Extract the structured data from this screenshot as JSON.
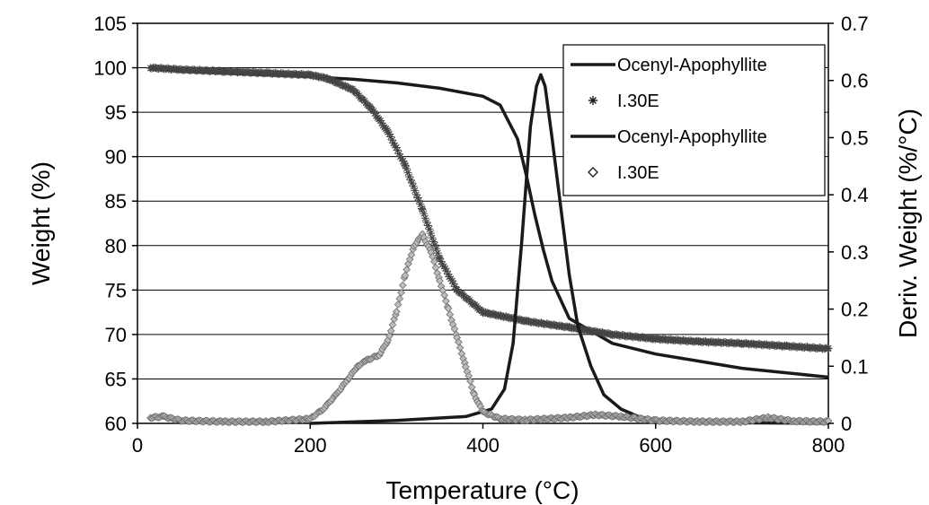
{
  "chart_data": {
    "type": "line",
    "xlabel": "Temperature (°C)",
    "ylabel": "Weight (%)",
    "y2label": "Deriv. Weight (%/°C)",
    "xlim": [
      0,
      800
    ],
    "ylim": [
      60,
      105
    ],
    "y2lim": [
      0,
      0.7
    ],
    "x_ticks": [
      "0",
      "200",
      "400",
      "600",
      "800"
    ],
    "y_ticks": [
      "60",
      "65",
      "70",
      "75",
      "80",
      "85",
      "90",
      "95",
      "100",
      "105"
    ],
    "y2_ticks": [
      "0",
      "0.1",
      "0.2",
      "0.3",
      "0.4",
      "0.5",
      "0.6",
      "0.7"
    ],
    "grid": true,
    "legend_position": "top-right",
    "colors": {
      "ocenyl": "#1a1a1a",
      "i30e": "#6e6e6e"
    },
    "series": [
      {
        "name": "Ocenyl-Apophyllite",
        "axis": "left",
        "marker": "line",
        "x": [
          15,
          50,
          100,
          150,
          200,
          250,
          300,
          350,
          400,
          420,
          440,
          450,
          460,
          470,
          480,
          500,
          550,
          600,
          650,
          700,
          750,
          800
        ],
        "y": [
          100,
          99.6,
          99.4,
          99.2,
          99.0,
          98.7,
          98.3,
          97.7,
          96.8,
          95.8,
          92.0,
          88.0,
          83.5,
          79.5,
          76.0,
          71.8,
          69.0,
          67.8,
          67.0,
          66.2,
          65.7,
          65.2
        ]
      },
      {
        "name": "I.30E",
        "axis": "left",
        "marker": "star",
        "x": [
          15,
          50,
          100,
          150,
          200,
          220,
          250,
          270,
          290,
          310,
          330,
          350,
          370,
          400,
          450,
          500,
          550,
          600,
          650,
          700,
          750,
          800
        ],
        "y": [
          100,
          99.8,
          99.6,
          99.4,
          99.2,
          98.8,
          97.5,
          95.5,
          92.8,
          89.0,
          84.0,
          78.5,
          75.0,
          72.5,
          71.5,
          70.8,
          70.0,
          69.5,
          69.2,
          69.0,
          68.7,
          68.4
        ]
      },
      {
        "name": "Ocenyl-Apophyllite",
        "axis": "right",
        "marker": "line",
        "x": [
          200,
          300,
          380,
          410,
          425,
          435,
          445,
          455,
          462,
          467,
          472,
          480,
          490,
          500,
          510,
          525,
          540,
          560,
          580,
          600,
          650,
          700,
          800
        ],
        "y": [
          0.0,
          0.005,
          0.012,
          0.025,
          0.06,
          0.14,
          0.32,
          0.52,
          0.59,
          0.61,
          0.59,
          0.5,
          0.38,
          0.26,
          0.17,
          0.1,
          0.05,
          0.025,
          0.012,
          0.006,
          0.002,
          0.001,
          0.0
        ]
      },
      {
        "name": "I.30E",
        "axis": "right",
        "marker": "diamond",
        "x": [
          15,
          30,
          50,
          100,
          150,
          200,
          215,
          230,
          245,
          255,
          265,
          280,
          290,
          300,
          310,
          320,
          330,
          340,
          350,
          360,
          370,
          380,
          390,
          400,
          420,
          450,
          500,
          530,
          560,
          600,
          650,
          700,
          730,
          760,
          800
        ],
        "y": [
          0.01,
          0.012,
          0.005,
          0.003,
          0.003,
          0.008,
          0.025,
          0.05,
          0.08,
          0.1,
          0.11,
          0.12,
          0.145,
          0.195,
          0.26,
          0.31,
          0.33,
          0.3,
          0.25,
          0.2,
          0.15,
          0.1,
          0.05,
          0.02,
          0.008,
          0.006,
          0.01,
          0.015,
          0.012,
          0.005,
          0.003,
          0.003,
          0.01,
          0.004,
          0.003
        ]
      }
    ]
  }
}
